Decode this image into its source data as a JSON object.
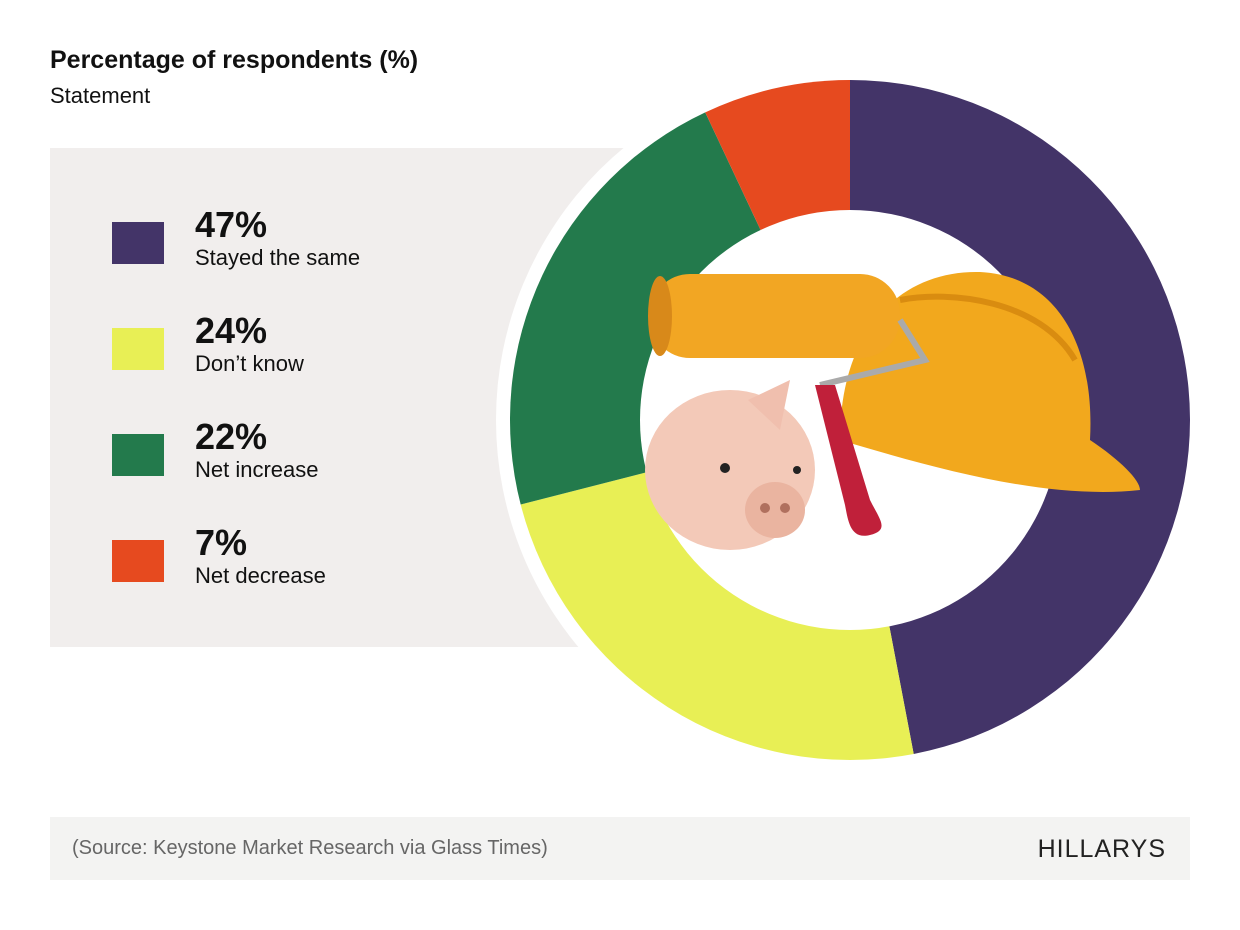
{
  "chart_data": {
    "type": "pie",
    "title": "Percentage of respondents (%)",
    "subtitle": "Statement",
    "donut": true,
    "legend": "left",
    "categories": [
      "Stayed the same",
      "Don’t know",
      "Net increase",
      "Net decrease"
    ],
    "values": [
      47,
      24,
      22,
      7
    ],
    "value_labels": [
      "47%",
      "24%",
      "22%",
      "7%"
    ],
    "colors": [
      "#433468",
      "#e8ef55",
      "#237a4c",
      "#e64a1f"
    ]
  },
  "footer": {
    "source": "(Source: Keystone Market Research via Glass Times)",
    "logo": "HILLARYS"
  }
}
